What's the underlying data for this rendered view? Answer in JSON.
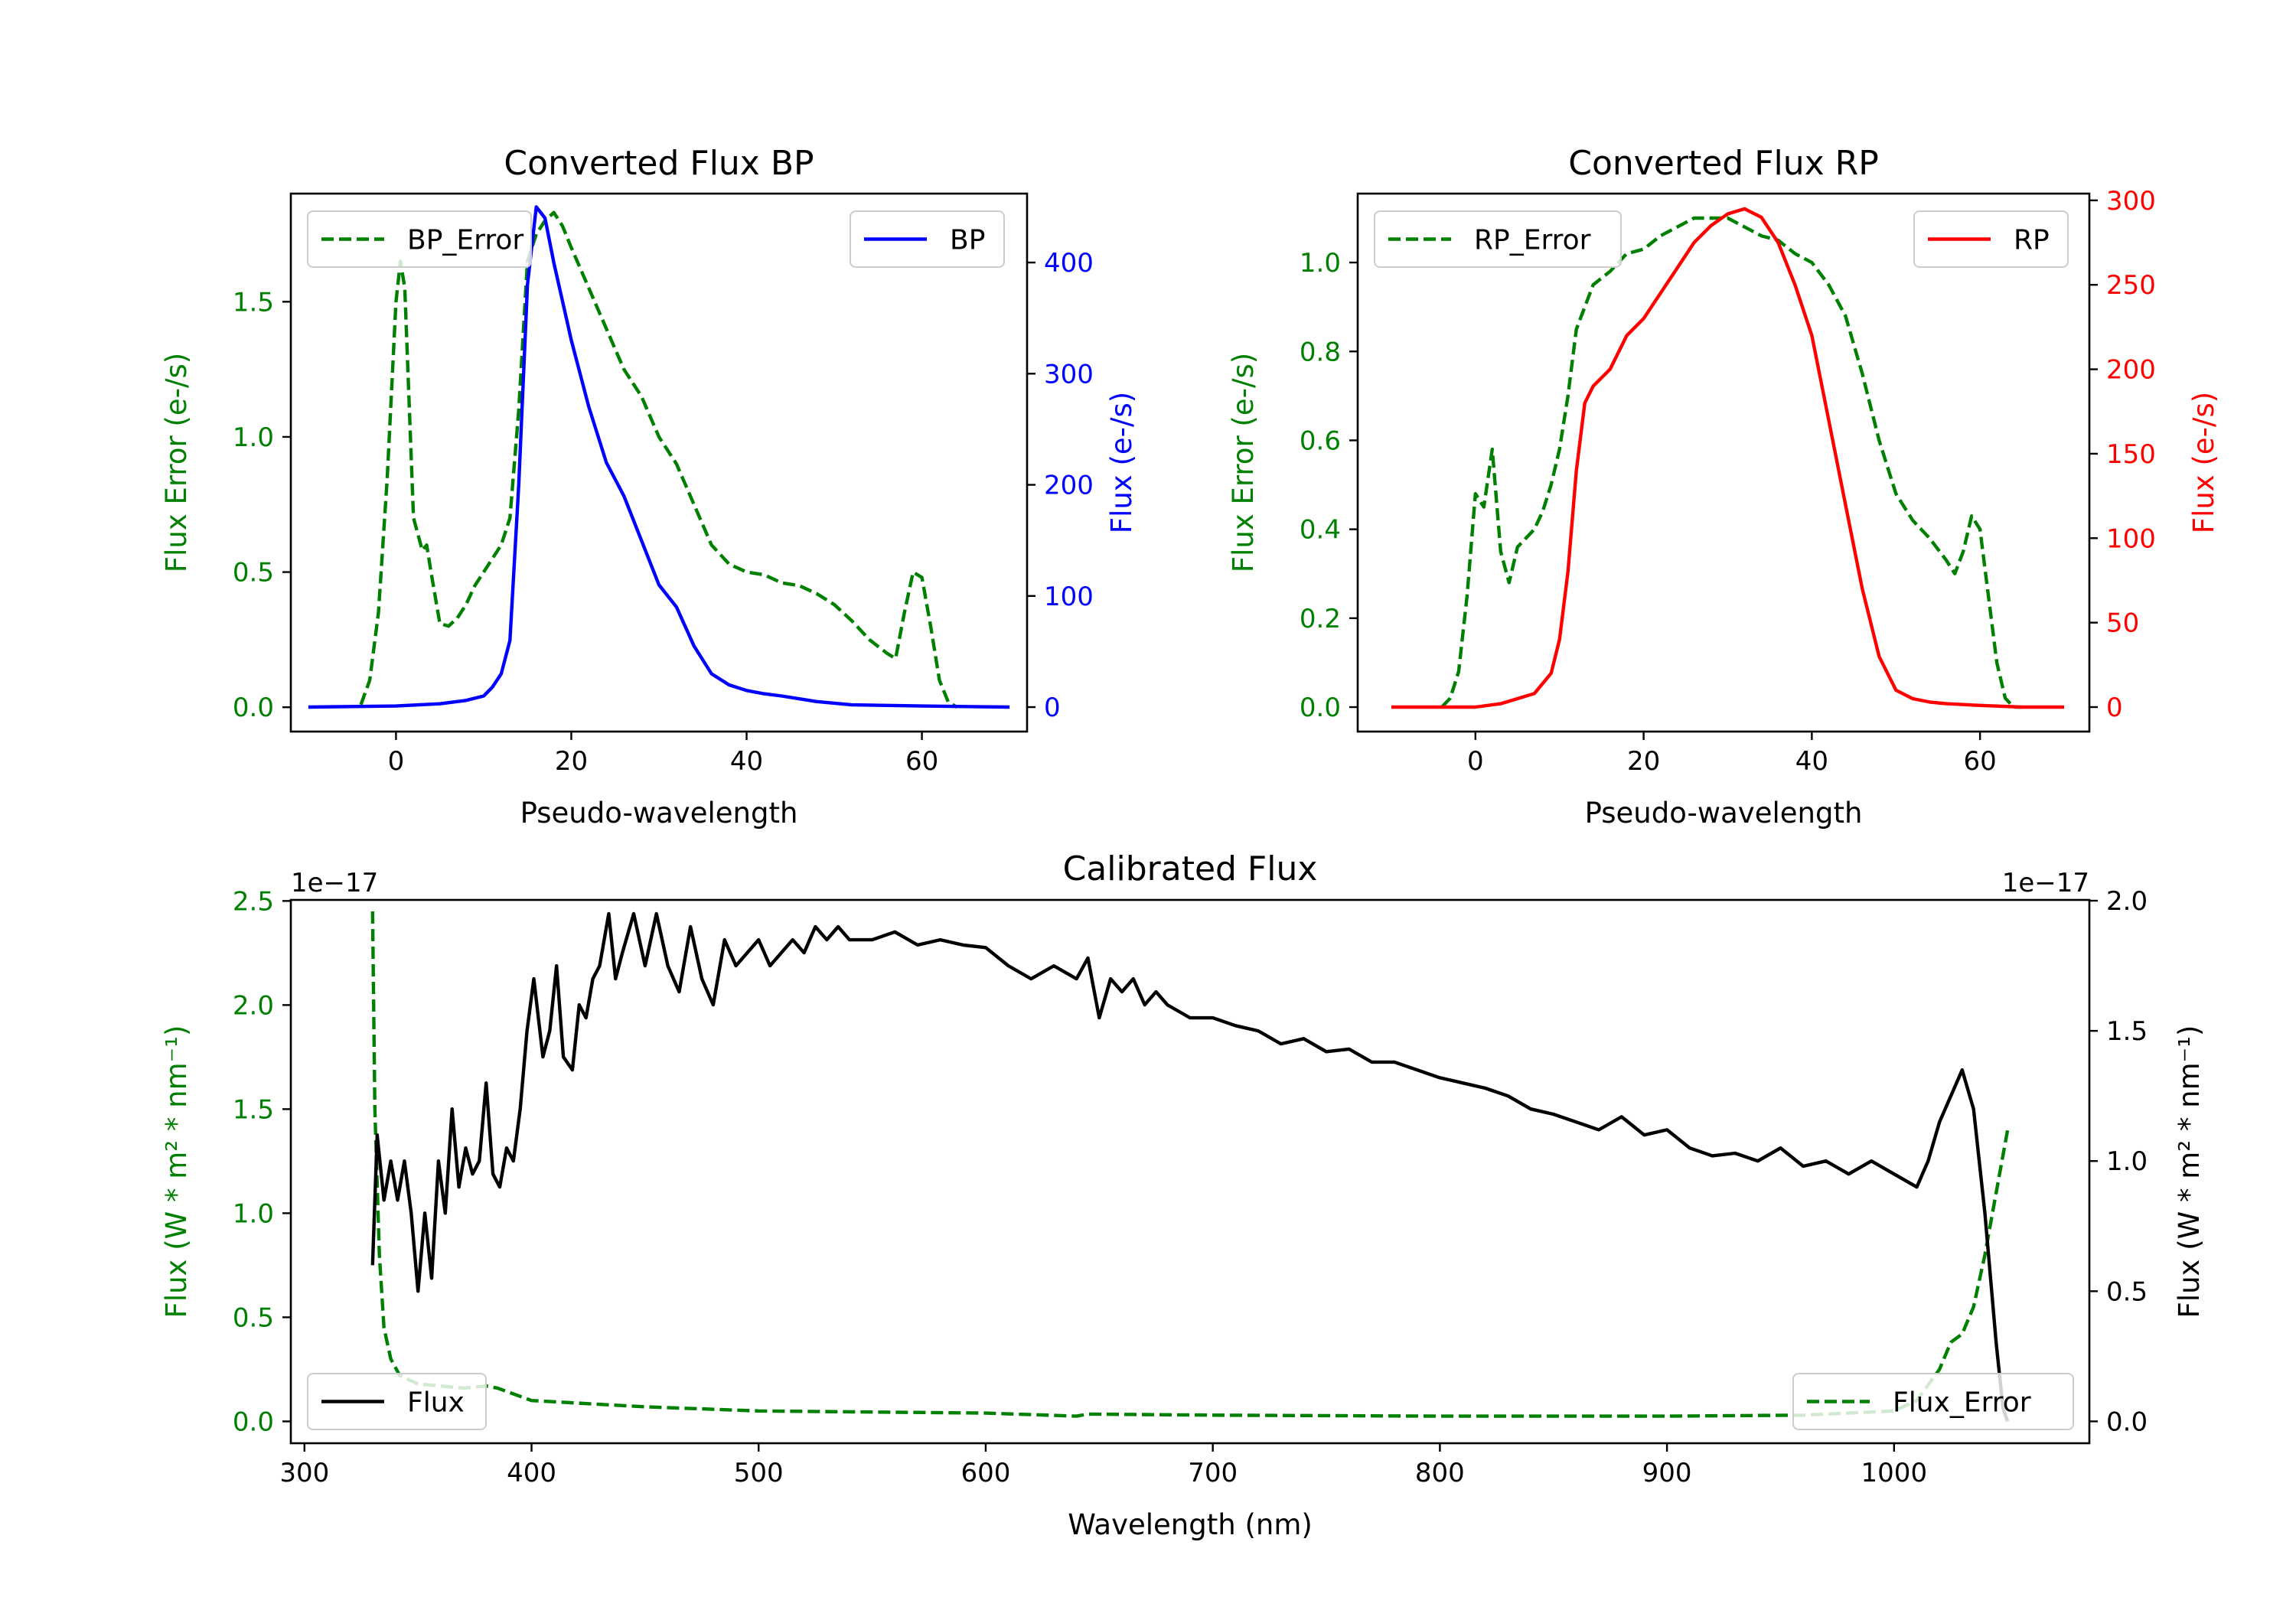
{
  "colors": {
    "green": "#008000",
    "blue": "#0000ff",
    "red": "#ff0000",
    "black": "#000000"
  },
  "chart_data": [
    {
      "id": "bp",
      "type": "line",
      "title": "Converted Flux BP",
      "xlabel": "Pseudo-wavelength",
      "ylabel_left": "Flux Error (e-/s)",
      "ylabel_right": "Flux (e-/s)",
      "xlim": [
        -12,
        72
      ],
      "ylim_left": [
        -0.09,
        1.9
      ],
      "ylim_right": [
        -22,
        462
      ],
      "xticks": [
        0,
        20,
        40,
        60
      ],
      "xtick_labels": [
        "0",
        "20",
        "40",
        "60"
      ],
      "yticks_left": [
        0.0,
        0.5,
        1.0,
        1.5
      ],
      "ytick_labels_left": [
        "0.0",
        "0.5",
        "1.0",
        "1.5"
      ],
      "yticks_right": [
        0,
        100,
        200,
        300,
        400
      ],
      "ytick_labels_right": [
        "0",
        "100",
        "200",
        "300",
        "400"
      ],
      "legend_left": "BP_Error",
      "legend_right": "BP",
      "series": [
        {
          "name": "BP_Error",
          "axis": "left",
          "style": "dashed",
          "color": "green",
          "x": [
            -4,
            -3,
            -2,
            -1,
            0,
            0.5,
            1,
            2,
            3,
            3.5,
            4,
            5,
            6,
            7,
            8,
            9,
            10,
            11,
            12,
            13,
            14,
            15,
            16,
            17,
            18,
            19,
            20,
            22,
            24,
            26,
            28,
            30,
            32,
            34,
            36,
            38,
            40,
            42,
            44,
            46,
            48,
            50,
            52,
            54,
            56,
            57,
            58,
            59,
            60,
            61,
            62,
            63,
            64
          ],
          "y": [
            0.01,
            0.1,
            0.35,
            0.85,
            1.5,
            1.65,
            1.55,
            0.7,
            0.58,
            0.6,
            0.5,
            0.31,
            0.3,
            0.33,
            0.38,
            0.45,
            0.5,
            0.55,
            0.6,
            0.7,
            1.1,
            1.65,
            1.75,
            1.8,
            1.83,
            1.78,
            1.7,
            1.55,
            1.4,
            1.25,
            1.15,
            1.0,
            0.9,
            0.75,
            0.6,
            0.53,
            0.5,
            0.49,
            0.46,
            0.45,
            0.42,
            0.38,
            0.32,
            0.25,
            0.2,
            0.18,
            0.35,
            0.5,
            0.48,
            0.3,
            0.1,
            0.02,
            0.0
          ]
        },
        {
          "name": "BP",
          "axis": "right",
          "style": "solid",
          "color": "blue",
          "x": [
            -10,
            0,
            5,
            8,
            10,
            11,
            12,
            13,
            14,
            15,
            16,
            17,
            18,
            20,
            22,
            24,
            26,
            28,
            30,
            32,
            34,
            36,
            38,
            40,
            42,
            44,
            48,
            52,
            60,
            70
          ],
          "y": [
            0,
            1,
            3,
            6,
            10,
            18,
            30,
            60,
            200,
            380,
            450,
            440,
            400,
            330,
            270,
            220,
            190,
            150,
            110,
            90,
            55,
            30,
            20,
            15,
            12,
            10,
            5,
            2,
            1,
            0
          ]
        }
      ]
    },
    {
      "id": "rp",
      "type": "line",
      "title": "Converted Flux RP",
      "xlabel": "Pseudo-wavelength",
      "ylabel_left": "Flux Error (e-/s)",
      "ylabel_right": "Flux (e-/s)",
      "xlim": [
        -14,
        73
      ],
      "ylim_left": [
        -0.055,
        1.155
      ],
      "ylim_right": [
        -14.5,
        304
      ],
      "xticks": [
        0,
        20,
        40,
        60
      ],
      "xtick_labels": [
        "0",
        "20",
        "40",
        "60"
      ],
      "yticks_left": [
        0.0,
        0.2,
        0.4,
        0.6,
        0.8,
        1.0
      ],
      "ytick_labels_left": [
        "0.0",
        "0.2",
        "0.4",
        "0.6",
        "0.8",
        "1.0"
      ],
      "yticks_right": [
        0,
        50,
        100,
        150,
        200,
        250,
        300
      ],
      "ytick_labels_right": [
        "0",
        "50",
        "100",
        "150",
        "200",
        "250",
        "300"
      ],
      "legend_left": "RP_Error",
      "legend_right": "RP",
      "series": [
        {
          "name": "RP_Error",
          "axis": "left",
          "style": "dashed",
          "color": "green",
          "x": [
            -4,
            -3,
            -2,
            -1,
            0,
            1,
            2,
            3,
            4,
            5,
            6,
            7,
            8,
            9,
            10,
            11,
            12,
            14,
            16,
            18,
            20,
            22,
            24,
            26,
            28,
            30,
            32,
            34,
            36,
            38,
            40,
            42,
            44,
            46,
            48,
            50,
            52,
            54,
            56,
            57,
            58,
            59,
            60,
            61,
            62,
            63,
            64,
            65
          ],
          "y": [
            0.0,
            0.02,
            0.08,
            0.25,
            0.48,
            0.45,
            0.58,
            0.35,
            0.28,
            0.36,
            0.38,
            0.4,
            0.44,
            0.5,
            0.58,
            0.7,
            0.85,
            0.95,
            0.98,
            1.02,
            1.03,
            1.06,
            1.08,
            1.1,
            1.1,
            1.1,
            1.08,
            1.06,
            1.05,
            1.02,
            1.0,
            0.95,
            0.88,
            0.75,
            0.6,
            0.48,
            0.42,
            0.38,
            0.33,
            0.3,
            0.35,
            0.43,
            0.4,
            0.25,
            0.1,
            0.02,
            0.0,
            0.0
          ]
        },
        {
          "name": "RP",
          "axis": "right",
          "style": "solid",
          "color": "red",
          "x": [
            -10,
            0,
            3,
            5,
            7,
            9,
            10,
            11,
            12,
            13,
            14,
            16,
            18,
            20,
            22,
            24,
            26,
            28,
            30,
            32,
            34,
            36,
            38,
            40,
            42,
            44,
            46,
            48,
            50,
            52,
            54,
            56,
            60,
            65,
            70
          ],
          "y": [
            0,
            0,
            2,
            5,
            8,
            20,
            40,
            80,
            140,
            180,
            190,
            200,
            220,
            230,
            245,
            260,
            275,
            285,
            292,
            295,
            290,
            275,
            250,
            220,
            170,
            120,
            70,
            30,
            10,
            5,
            3,
            2,
            1,
            0,
            0
          ]
        }
      ]
    },
    {
      "id": "cal",
      "type": "line",
      "title": "Calibrated Flux",
      "xlabel": "Wavelength (nm)",
      "ylabel_left": "Flux (W * m² * nm⁻¹)",
      "ylabel_right": "Flux (W * m² * nm⁻¹)",
      "scale_left": "1e−17",
      "scale_right": "1e−17",
      "xlim": [
        294,
        1086
      ],
      "ylim_left": [
        -0.105,
        2.505
      ],
      "ylim_right": [
        -0.084,
        2.003
      ],
      "xticks": [
        300,
        400,
        500,
        600,
        700,
        800,
        900,
        1000
      ],
      "xtick_labels": [
        "300",
        "400",
        "500",
        "600",
        "700",
        "800",
        "900",
        "1000"
      ],
      "yticks_left": [
        0.0,
        0.5,
        1.0,
        1.5,
        2.0,
        2.5
      ],
      "ytick_labels_left": [
        "0.0",
        "0.5",
        "1.0",
        "1.5",
        "2.0",
        "2.5"
      ],
      "yticks_right": [
        0.0,
        0.5,
        1.0,
        1.5,
        2.0
      ],
      "ytick_labels_right": [
        "0.0",
        "0.5",
        "1.0",
        "1.5",
        "2.0"
      ],
      "legend_left": "Flux",
      "legend_right": "Flux_Error",
      "series": [
        {
          "name": "Flux_Error",
          "axis": "left",
          "style": "dashed",
          "color": "green",
          "x": [
            330,
            331,
            333,
            335,
            338,
            342,
            350,
            360,
            370,
            380,
            385,
            400,
            450,
            500,
            600,
            640,
            645,
            700,
            800,
            900,
            960,
            1000,
            1010,
            1020,
            1025,
            1030,
            1035,
            1040,
            1045,
            1050
          ],
          "y": [
            2.45,
            1.5,
            0.8,
            0.45,
            0.3,
            0.22,
            0.18,
            0.17,
            0.16,
            0.17,
            0.16,
            0.1,
            0.07,
            0.05,
            0.04,
            0.025,
            0.035,
            0.03,
            0.025,
            0.025,
            0.03,
            0.05,
            0.1,
            0.25,
            0.38,
            0.42,
            0.55,
            0.8,
            1.1,
            1.4
          ]
        },
        {
          "name": "Flux",
          "axis": "right",
          "style": "solid",
          "color": "black",
          "x": [
            330,
            332,
            335,
            338,
            341,
            344,
            347,
            350,
            353,
            356,
            359,
            362,
            365,
            368,
            371,
            374,
            377,
            380,
            383,
            386,
            389,
            392,
            395,
            398,
            401,
            405,
            408,
            411,
            414,
            418,
            421,
            424,
            427,
            430,
            434,
            437,
            440,
            445,
            450,
            455,
            460,
            465,
            470,
            475,
            480,
            485,
            490,
            495,
            500,
            505,
            510,
            515,
            520,
            525,
            530,
            535,
            540,
            550,
            560,
            570,
            580,
            590,
            600,
            610,
            620,
            630,
            640,
            645,
            650,
            655,
            660,
            665,
            670,
            675,
            680,
            690,
            700,
            710,
            720,
            730,
            740,
            750,
            760,
            770,
            780,
            790,
            800,
            810,
            820,
            830,
            840,
            850,
            860,
            870,
            880,
            890,
            900,
            910,
            920,
            930,
            940,
            950,
            960,
            970,
            980,
            990,
            1000,
            1010,
            1015,
            1020,
            1025,
            1030,
            1035,
            1040,
            1045,
            1048,
            1050
          ],
          "y": [
            0.6,
            1.1,
            0.85,
            1.0,
            0.85,
            1.0,
            0.8,
            0.5,
            0.8,
            0.55,
            1.0,
            0.8,
            1.2,
            0.9,
            1.05,
            0.95,
            1.0,
            1.3,
            0.95,
            0.9,
            1.05,
            1.0,
            1.2,
            1.5,
            1.7,
            1.4,
            1.5,
            1.75,
            1.4,
            1.35,
            1.6,
            1.55,
            1.7,
            1.75,
            1.95,
            1.7,
            1.8,
            1.95,
            1.75,
            1.95,
            1.75,
            1.65,
            1.9,
            1.7,
            1.6,
            1.85,
            1.75,
            1.8,
            1.85,
            1.75,
            1.8,
            1.85,
            1.8,
            1.9,
            1.85,
            1.9,
            1.85,
            1.85,
            1.88,
            1.83,
            1.85,
            1.83,
            1.82,
            1.75,
            1.7,
            1.75,
            1.7,
            1.78,
            1.55,
            1.7,
            1.65,
            1.7,
            1.6,
            1.65,
            1.6,
            1.55,
            1.55,
            1.52,
            1.5,
            1.45,
            1.47,
            1.42,
            1.43,
            1.38,
            1.38,
            1.35,
            1.32,
            1.3,
            1.28,
            1.25,
            1.2,
            1.18,
            1.15,
            1.12,
            1.17,
            1.1,
            1.12,
            1.05,
            1.02,
            1.03,
            1.0,
            1.05,
            0.98,
            1.0,
            0.95,
            1.0,
            0.95,
            0.9,
            1.0,
            1.15,
            1.25,
            1.35,
            1.2,
            0.8,
            0.3,
            0.05,
            0.0
          ]
        }
      ]
    }
  ]
}
